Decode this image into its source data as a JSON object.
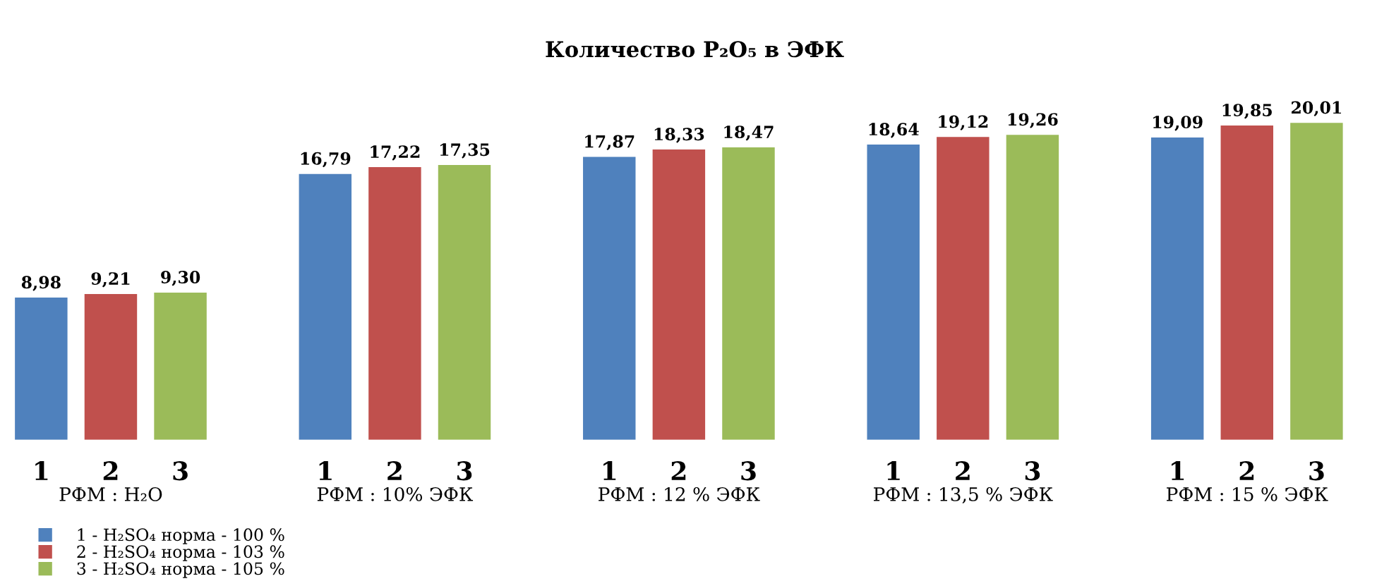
{
  "chart_data": {
    "type": "bar",
    "title": "Количество P₂O₅ в ЭФК",
    "categories": [
      "РФМ : H₂O",
      "РФМ : 10% ЭФК",
      "РФМ : 12 % ЭФК",
      "РФМ : 13,5 % ЭФК",
      "РФМ : 15 % ЭФК"
    ],
    "series": [
      {
        "name": "1 - H₂SO₄ норма - 100 %",
        "color": "#4f81bd",
        "values": [
          8.98,
          16.79,
          17.87,
          18.64,
          19.09
        ],
        "value_labels": [
          "8,98",
          "16,79",
          "17,87",
          "18,64",
          "19,09"
        ]
      },
      {
        "name": "2 - H₂SO₄ норма - 103 %",
        "color": "#c0504d",
        "values": [
          9.21,
          17.22,
          18.33,
          19.12,
          19.85
        ],
        "value_labels": [
          "9,21",
          "17,22",
          "18,33",
          "19,12",
          "19,85"
        ]
      },
      {
        "name": "3 - H₂SO₄ норма - 105 %",
        "color": "#9bbb59",
        "values": [
          9.3,
          17.35,
          18.47,
          19.26,
          20.01
        ],
        "value_labels": [
          "9,30",
          "17,35",
          "18,47",
          "19,26",
          "20,01"
        ]
      }
    ],
    "annotations": [
      "1",
      "2",
      "3"
    ],
    "grid": false,
    "legend": "bottom left"
  }
}
